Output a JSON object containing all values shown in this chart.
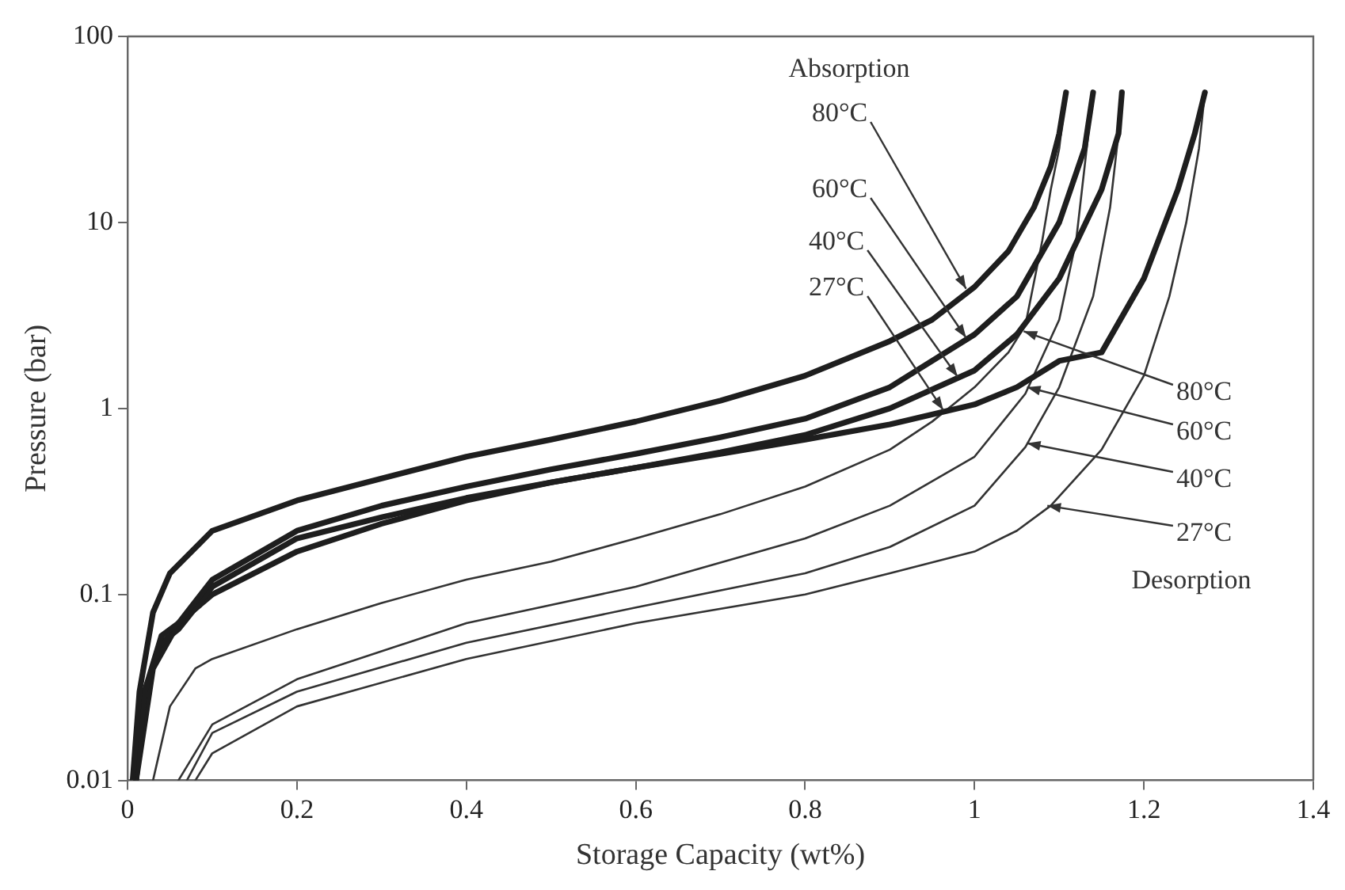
{
  "chart_data": {
    "type": "line",
    "xlabel": "Storage Capacity (wt%)",
    "ylabel": "Pressure (bar)",
    "log": "y",
    "xlim": [
      0,
      1.4
    ],
    "xticks": [
      0,
      0.2,
      0.4,
      0.6,
      0.8,
      1,
      1.2,
      1.4
    ],
    "ylim": [
      0.01,
      100
    ],
    "yticks": [
      0.01,
      0.1,
      1,
      10,
      100
    ],
    "grid": false,
    "legend": false,
    "marker": "none",
    "line_style": "solid",
    "series": [
      {
        "color": "#1e1e1e",
        "x": [
          0.006,
          0.014,
          0.03,
          0.05,
          0.1,
          0.2,
          0.3,
          0.4,
          0.5,
          0.6,
          0.7,
          0.8,
          0.9,
          0.95,
          1.0,
          1.04,
          1.07,
          1.09,
          1.1,
          1.108
        ],
        "values": [
          0.01,
          0.03,
          0.08,
          0.13,
          0.22,
          0.32,
          0.42,
          0.55,
          0.68,
          0.85,
          1.1,
          1.5,
          2.3,
          3.0,
          4.5,
          7,
          12,
          20,
          30,
          50
        ]
      },
      {
        "color": "#1e1e1e",
        "x": [
          0.01,
          0.02,
          0.04,
          0.06,
          0.1,
          0.2,
          0.3,
          0.4,
          0.5,
          0.6,
          0.7,
          0.8,
          0.9,
          1.0,
          1.05,
          1.1,
          1.13,
          1.14
        ],
        "values": [
          0.01,
          0.03,
          0.06,
          0.07,
          0.12,
          0.22,
          0.3,
          0.38,
          0.47,
          0.57,
          0.7,
          0.88,
          1.3,
          2.5,
          4,
          10,
          25,
          50
        ]
      },
      {
        "color": "#1e1e1e",
        "x": [
          0.01,
          0.02,
          0.04,
          0.06,
          0.1,
          0.2,
          0.3,
          0.4,
          0.5,
          0.6,
          0.7,
          0.8,
          0.9,
          1.0,
          1.05,
          1.1,
          1.15,
          1.17,
          1.174
        ],
        "values": [
          0.01,
          0.03,
          0.055,
          0.065,
          0.11,
          0.2,
          0.26,
          0.33,
          0.4,
          0.48,
          0.58,
          0.72,
          1.0,
          1.6,
          2.5,
          5,
          15,
          30,
          50
        ]
      },
      {
        "color": "#1e1e1e",
        "x": [
          0.01,
          0.03,
          0.06,
          0.1,
          0.2,
          0.3,
          0.4,
          0.5,
          0.6,
          0.7,
          0.8,
          0.9,
          1.0,
          1.05,
          1.1,
          1.15,
          1.2,
          1.24,
          1.26,
          1.272
        ],
        "values": [
          0.01,
          0.04,
          0.07,
          0.1,
          0.17,
          0.24,
          0.32,
          0.4,
          0.48,
          0.57,
          0.68,
          0.82,
          1.05,
          1.3,
          1.8,
          2.0,
          5,
          15,
          30,
          50
        ]
      },
      {
        "color": "#333333",
        "x": [
          0.03,
          0.05,
          0.08,
          0.1,
          0.2,
          0.3,
          0.4,
          0.5,
          0.6,
          0.7,
          0.8,
          0.9,
          0.95,
          1.0,
          1.04,
          1.06,
          1.08,
          1.09,
          1.1,
          1.108
        ],
        "values": [
          0.01,
          0.025,
          0.04,
          0.045,
          0.065,
          0.09,
          0.12,
          0.15,
          0.2,
          0.27,
          0.38,
          0.6,
          0.85,
          1.3,
          2.0,
          2.8,
          8,
          15,
          25,
          50
        ]
      },
      {
        "color": "#333333",
        "x": [
          0.06,
          0.1,
          0.2,
          0.4,
          0.6,
          0.8,
          0.9,
          1.0,
          1.06,
          1.1,
          1.12,
          1.13,
          1.14
        ],
        "values": [
          0.01,
          0.02,
          0.035,
          0.07,
          0.11,
          0.2,
          0.3,
          0.55,
          1.2,
          3,
          8,
          20,
          50
        ]
      },
      {
        "color": "#333333",
        "x": [
          0.07,
          0.1,
          0.2,
          0.4,
          0.6,
          0.8,
          0.9,
          1.0,
          1.06,
          1.1,
          1.14,
          1.16,
          1.17,
          1.174
        ],
        "values": [
          0.01,
          0.018,
          0.03,
          0.055,
          0.085,
          0.13,
          0.18,
          0.3,
          0.62,
          1.3,
          4,
          12,
          30,
          50
        ]
      },
      {
        "color": "#333333",
        "x": [
          0.08,
          0.1,
          0.2,
          0.4,
          0.6,
          0.8,
          0.9,
          1.0,
          1.05,
          1.09,
          1.15,
          1.2,
          1.23,
          1.25,
          1.265,
          1.272
        ],
        "values": [
          0.01,
          0.014,
          0.025,
          0.045,
          0.07,
          0.1,
          0.13,
          0.17,
          0.22,
          0.3,
          0.6,
          1.5,
          4,
          10,
          25,
          50
        ]
      }
    ],
    "annotations": [
      "Absorption",
      {
        "text": "80°C",
        "x": 0.99,
        "y": 4.4
      },
      {
        "text": "60°C",
        "x": 0.99,
        "y": 2.4
      },
      {
        "text": "40°C",
        "x": 0.98,
        "y": 1.48
      },
      {
        "text": "27°C",
        "x": 0.963,
        "y": 0.98
      },
      {
        "text": "80°C",
        "x": 1.058,
        "y": 2.6
      },
      {
        "text": "60°C",
        "x": 1.062,
        "y": 1.3
      },
      {
        "text": "40°C",
        "x": 1.062,
        "y": 0.65
      },
      {
        "text": "27°C",
        "x": 1.086,
        "y": 0.3
      },
      "Desorption"
    ]
  }
}
